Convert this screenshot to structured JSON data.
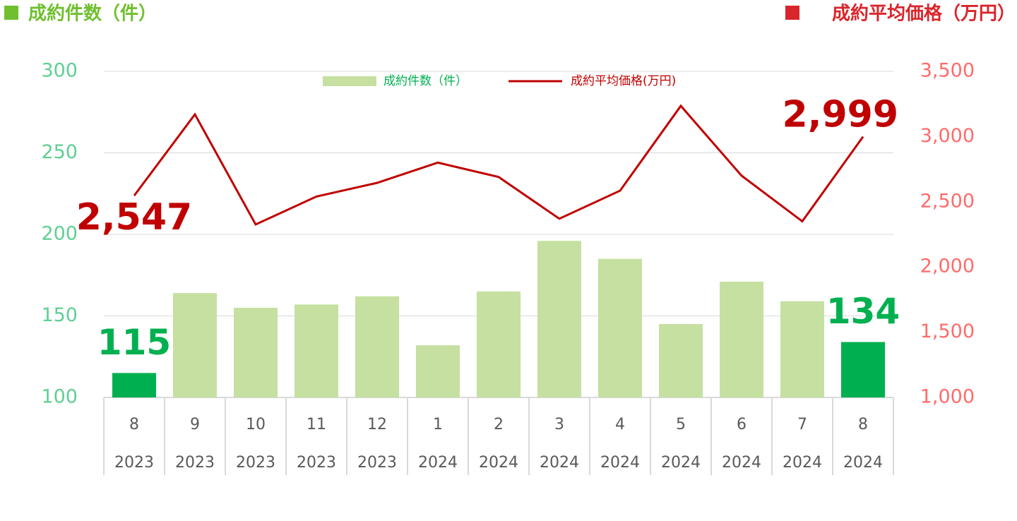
{
  "chart_data": {
    "type": "bar_line",
    "y_label": "成約件数（件）",
    "y2_label": "成約平均価格（万円）",
    "categories": [
      "8",
      "9",
      "10",
      "11",
      "12",
      "1",
      "2",
      "3",
      "4",
      "5",
      "6",
      "7",
      "8"
    ],
    "years": [
      "2023",
      "2023",
      "2023",
      "2023",
      "2023",
      "2024",
      "2024",
      "2024",
      "2024",
      "2024",
      "2024",
      "2024",
      "2024"
    ],
    "series": [
      {
        "name": "成約件数（件）",
        "type": "bar",
        "color": "#c5e0a0",
        "highlight_color": "#00b050",
        "legend_text_color": "#00b050",
        "values": [
          115,
          164,
          155,
          157,
          162,
          132,
          165,
          196,
          185,
          145,
          171,
          159,
          134
        ],
        "value_labels": [
          "115",
          null,
          null,
          null,
          null,
          null,
          null,
          null,
          null,
          null,
          null,
          null,
          "134"
        ]
      },
      {
        "name": "成約平均価格(万円)",
        "type": "line",
        "axis": "y2",
        "color": "#c00000",
        "legend_text_color": "#c00000",
        "values": [
          2547,
          3170,
          2326,
          2540,
          2645,
          2800,
          2690,
          2370,
          2585,
          3235,
          2700,
          2350,
          2999
        ],
        "value_labels": [
          "2,547",
          null,
          null,
          null,
          null,
          null,
          null,
          null,
          null,
          null,
          null,
          null,
          "2,999"
        ]
      }
    ],
    "ylim": [
      100,
      300
    ],
    "yticks": [
      100,
      150,
      200,
      250,
      300
    ],
    "y2lim": [
      1000,
      3500
    ],
    "y2ticks": [
      {
        "value": 1000,
        "label": "1,000"
      },
      {
        "value": 1500,
        "label": "1,500"
      },
      {
        "value": 2000,
        "label": "2,000"
      },
      {
        "value": 2500,
        "label": "2,500"
      },
      {
        "value": 3000,
        "label": "3,000"
      },
      {
        "value": 3500,
        "label": "3,500"
      }
    ],
    "y_tick_color": "#5fcf94",
    "y2_tick_color": "#ff6b6b",
    "grid": true
  }
}
